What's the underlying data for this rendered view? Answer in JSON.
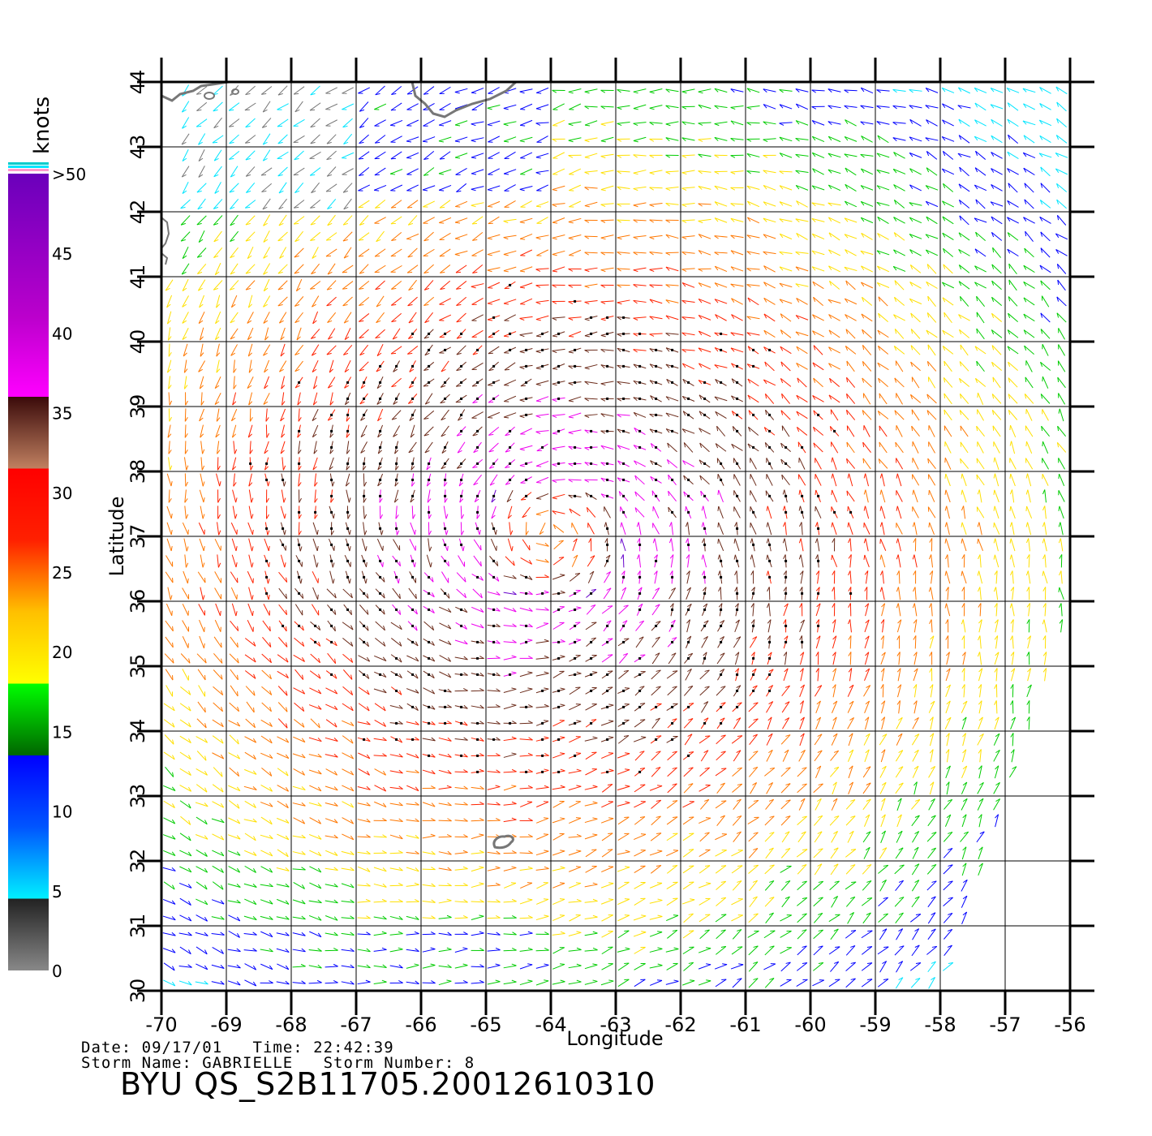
{
  "map": {
    "lon_range": [
      -70,
      -56
    ],
    "lat_range": [
      30,
      44
    ],
    "lon_ticks": [
      "-70",
      "-69",
      "-68",
      "-67",
      "-66",
      "-65",
      "-64",
      "-63",
      "-62",
      "-61",
      "-60",
      "-59",
      "-58",
      "-57",
      "-56"
    ],
    "lat_ticks": [
      "30",
      "31",
      "32",
      "33",
      "34",
      "35",
      "36",
      "37",
      "38",
      "39",
      "40",
      "41",
      "42",
      "43",
      "44"
    ],
    "xlabel": "Longitude",
    "ylabel": "Latitude",
    "storm_center": [
      -64.0,
      37.0
    ]
  },
  "colorbar": {
    "title": "knots",
    "labels": [
      "0",
      "5",
      "10",
      "15",
      "20",
      "25",
      "30",
      "35",
      "40",
      "45",
      ">50"
    ],
    "colors": {
      "gray": "#777777",
      "cyan": "#00e5ff",
      "blue": "#0000ff",
      "green": "#00cc00",
      "yellow": "#ffe000",
      "orange": "#ff7700",
      "red": "#ff2200",
      "brown": "#6b2b1a",
      "magenta": "#ee00ee",
      "purple": "#6600cc"
    }
  },
  "footer": {
    "date_label": "Date:",
    "date": "09/17/01",
    "time_label": "Time:",
    "time": "22:42:39",
    "storm_name_label": "Storm Name:",
    "storm_name": "GABRIELLE",
    "storm_number_label": "Storm Number:",
    "storm_number": "8",
    "product": "BYU QS_S2B11705.20012610310"
  }
}
